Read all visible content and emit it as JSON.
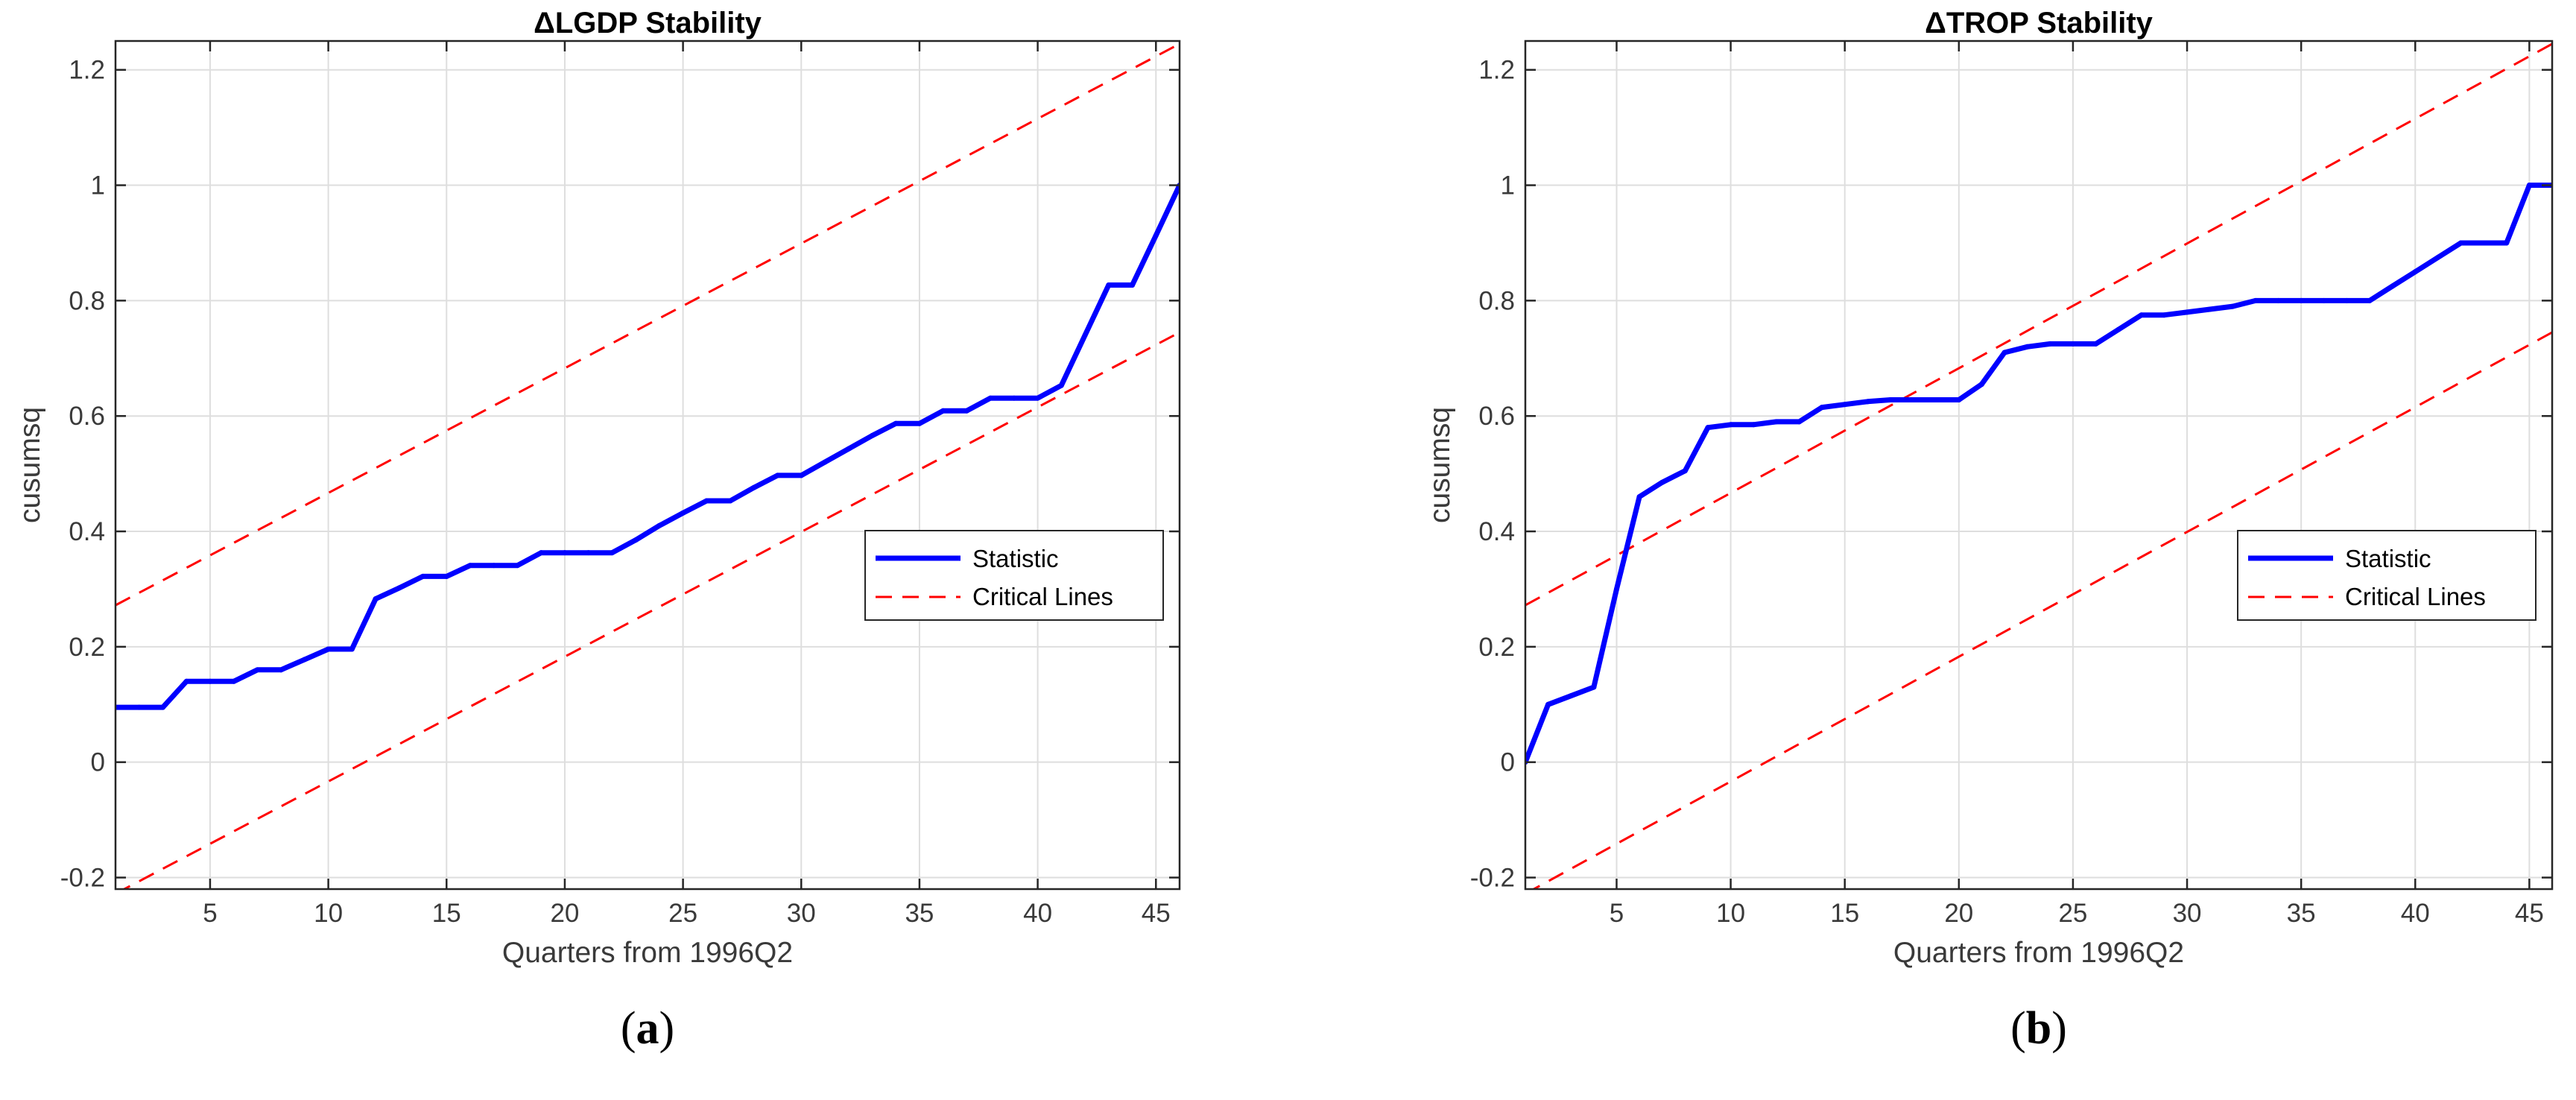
{
  "chart_data": [
    {
      "type": "line",
      "panel_label_open": "(",
      "panel_label_letter": "a",
      "panel_label_close": ")",
      "title": "ΔLGDP Stability",
      "xlabel": "Quarters from 1996Q2",
      "ylabel": "cusumsq",
      "xlim": [
        1,
        46
      ],
      "ylim": [
        -0.22,
        1.25
      ],
      "xticks": [
        5,
        10,
        15,
        20,
        25,
        30,
        35,
        40,
        45
      ],
      "yticks": [
        -0.2,
        0,
        0.2,
        0.4,
        0.6,
        0.8,
        1,
        1.2
      ],
      "ytick_labels": [
        "-0.2",
        "0",
        "0.2",
        "0.4",
        "0.6",
        "0.8",
        "1",
        "1.2"
      ],
      "grid": true,
      "legend_position": "right-middle",
      "series": [
        {
          "name": "Statistic",
          "color": "#0000ff",
          "style": "solid",
          "x": [
            1,
            2,
            3,
            4,
            5,
            6,
            7,
            8,
            9,
            10,
            11,
            12,
            13,
            14,
            15,
            16,
            17,
            18,
            19,
            20,
            21,
            22,
            23,
            24,
            25,
            26,
            27,
            28,
            29,
            30,
            31,
            32,
            33,
            34,
            35,
            36,
            37,
            38,
            39,
            40,
            41,
            42,
            43,
            44,
            45,
            46
          ],
          "y": [
            0.095,
            0.095,
            0.095,
            0.14,
            0.14,
            0.14,
            0.16,
            0.16,
            0.178,
            0.196,
            0.196,
            0.283,
            0.302,
            0.322,
            0.322,
            0.341,
            0.341,
            0.341,
            0.363,
            0.363,
            0.363,
            0.363,
            0.385,
            0.41,
            0.432,
            0.453,
            0.453,
            0.476,
            0.497,
            0.497,
            0.52,
            0.543,
            0.566,
            0.587,
            0.587,
            0.609,
            0.609,
            0.631,
            0.631,
            0.631,
            0.653,
            0.74,
            0.827,
            0.827,
            0.913,
            1.0
          ]
        },
        {
          "name": "Critical Lines",
          "color": "#ff0000",
          "style": "dashed",
          "upper": {
            "x": [
              1,
              46
            ],
            "y": [
              0.272,
              1.245
            ]
          },
          "lower": {
            "x": [
              1,
              46
            ],
            "y": [
              -0.228,
              0.745
            ]
          }
        }
      ]
    },
    {
      "type": "line",
      "panel_label_open": "(",
      "panel_label_letter": "b",
      "panel_label_close": ")",
      "title": "ΔTROP Stability",
      "xlabel": "Quarters from 1996Q2",
      "ylabel": "cusumsq",
      "xlim": [
        1,
        46
      ],
      "ylim": [
        -0.22,
        1.25
      ],
      "xticks": [
        5,
        10,
        15,
        20,
        25,
        30,
        35,
        40,
        45
      ],
      "yticks": [
        -0.2,
        0,
        0.2,
        0.4,
        0.6,
        0.8,
        1,
        1.2
      ],
      "ytick_labels": [
        "-0.2",
        "0",
        "0.2",
        "0.4",
        "0.6",
        "0.8",
        "1",
        "1.2"
      ],
      "grid": true,
      "legend_position": "right-middle",
      "series": [
        {
          "name": "Statistic",
          "color": "#0000ff",
          "style": "solid",
          "x": [
            1,
            2,
            3,
            4,
            5,
            6,
            7,
            8,
            9,
            10,
            11,
            12,
            13,
            14,
            15,
            16,
            17,
            18,
            19,
            20,
            21,
            22,
            23,
            24,
            25,
            26,
            27,
            28,
            29,
            30,
            31,
            32,
            33,
            34,
            35,
            36,
            37,
            38,
            39,
            40,
            41,
            42,
            43,
            44,
            45,
            46
          ],
          "y": [
            0.0,
            0.1,
            0.115,
            0.13,
            0.3,
            0.46,
            0.485,
            0.505,
            0.58,
            0.585,
            0.585,
            0.59,
            0.59,
            0.615,
            0.62,
            0.625,
            0.628,
            0.628,
            0.628,
            0.628,
            0.655,
            0.71,
            0.72,
            0.725,
            0.725,
            0.725,
            0.75,
            0.775,
            0.775,
            0.78,
            0.785,
            0.79,
            0.8,
            0.8,
            0.8,
            0.8,
            0.8,
            0.8,
            0.825,
            0.85,
            0.875,
            0.9,
            0.9,
            0.9,
            1.0,
            1.0
          ]
        },
        {
          "name": "Critical Lines",
          "color": "#ff0000",
          "style": "dashed",
          "upper": {
            "x": [
              1,
              46
            ],
            "y": [
              0.272,
              1.245
            ]
          },
          "lower": {
            "x": [
              1,
              46
            ],
            "y": [
              -0.228,
              0.745
            ]
          }
        }
      ]
    }
  ]
}
